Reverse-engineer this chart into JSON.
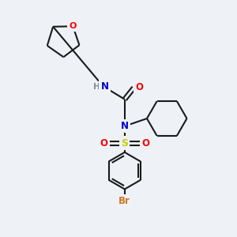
{
  "background_color": "#eef2f7",
  "bond_color": "#1a1a1a",
  "atom_colors": {
    "O": "#ff0000",
    "N": "#0000cc",
    "S": "#cccc00",
    "Br": "#cc7722",
    "H": "#888888",
    "C": "#1a1a1a"
  },
  "figsize": [
    3.0,
    3.0
  ],
  "dpi": 100
}
